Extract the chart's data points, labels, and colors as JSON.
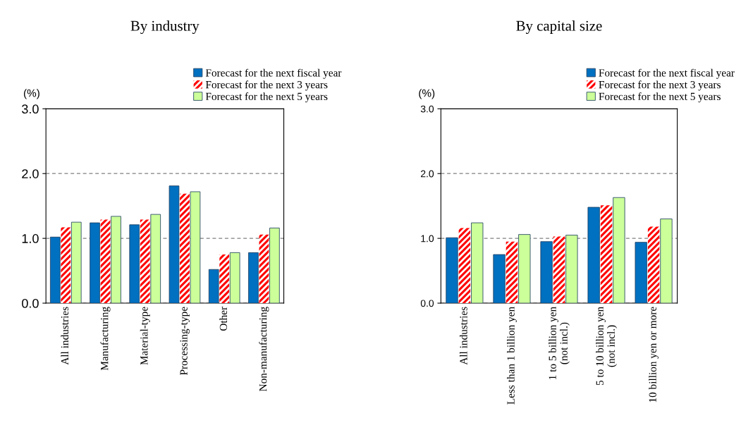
{
  "chart_data": [
    {
      "type": "bar",
      "title": "By industry",
      "ylabel": "(%)",
      "categories": [
        "All industries",
        "Manufacturing",
        "Material-type",
        "Processing-type",
        "Other",
        "Non-manufacturing"
      ],
      "series": [
        {
          "name": "Forecast for the next fiscal year",
          "color": "#0070c0",
          "values": [
            1.02,
            1.24,
            1.21,
            1.81,
            0.52,
            0.78
          ]
        },
        {
          "name": "Forecast for the next 3 years",
          "color": "#ff0000",
          "values": [
            1.17,
            1.29,
            1.29,
            1.69,
            0.75,
            1.06
          ]
        },
        {
          "name": "Forecast for the next 5 years",
          "color": "#ccff99",
          "values": [
            1.25,
            1.34,
            1.37,
            1.72,
            0.78,
            1.16
          ]
        }
      ],
      "ylim": [
        0,
        3
      ],
      "yticks": [
        {
          "value": 0,
          "label": "0.0"
        },
        {
          "value": 1,
          "label": "1.0"
        },
        {
          "value": 2,
          "label": "2.0"
        },
        {
          "value": 3,
          "label": "3.0"
        }
      ],
      "grid": "y",
      "legend": "top right"
    },
    {
      "type": "bar",
      "title": "By capital size",
      "ylabel": "(%)",
      "categories": [
        "All industries",
        "Less than 1 billion yen",
        "1 to 5 billion yen\n(not incl.)",
        "5 to 10 billion yen\n(not incl.)",
        "10 billion yen or more"
      ],
      "series": [
        {
          "name": "Forecast for the next fiscal year",
          "color": "#0070c0",
          "values": [
            1.01,
            0.75,
            0.95,
            1.48,
            0.94
          ]
        },
        {
          "name": "Forecast for the next 3 years",
          "color": "#ff0000",
          "values": [
            1.16,
            0.95,
            1.03,
            1.51,
            1.18
          ]
        },
        {
          "name": "Forecast for the next 5 years",
          "color": "#ccff99",
          "values": [
            1.24,
            1.06,
            1.05,
            1.63,
            1.3
          ]
        }
      ],
      "ylim": [
        0,
        3
      ],
      "yticks": [
        {
          "value": 0,
          "label": "0.0"
        },
        {
          "value": 1,
          "label": "1.0"
        },
        {
          "value": 2,
          "label": "2.0"
        },
        {
          "value": 3,
          "label": "3.0"
        }
      ],
      "grid": "y",
      "legend": "top right"
    }
  ]
}
